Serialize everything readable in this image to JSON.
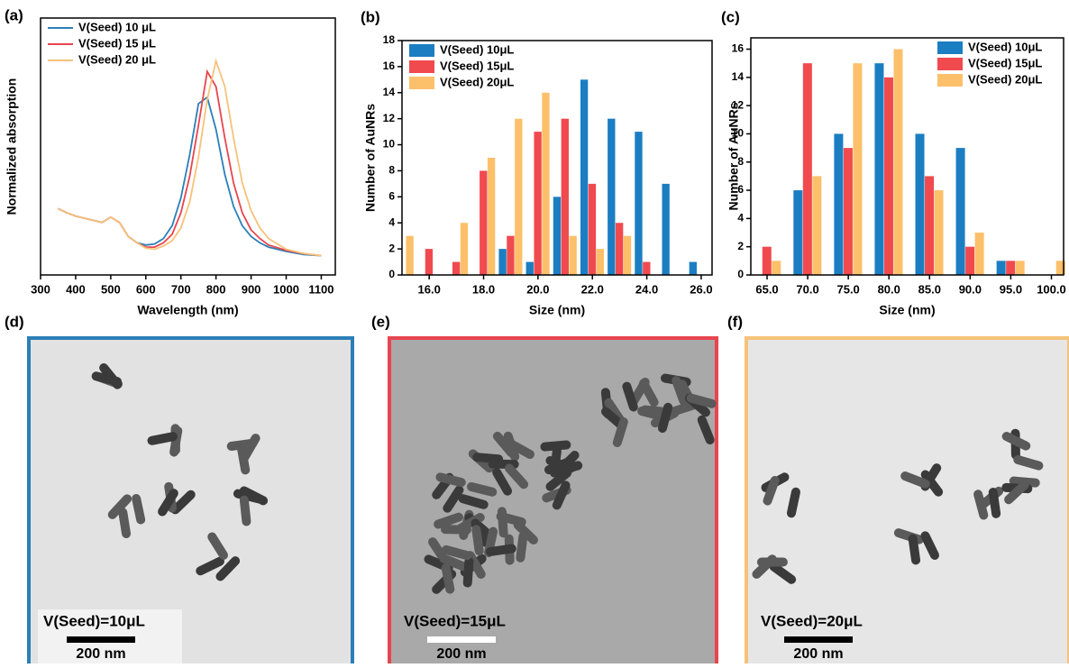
{
  "chart_data": [
    {
      "type": "line",
      "panel_label": "(a)",
      "xlabel": "Wavelength (nm)",
      "ylabel": "Normalized absorption",
      "x": [
        350,
        375,
        400,
        425,
        450,
        475,
        500,
        525,
        550,
        575,
        600,
        625,
        650,
        675,
        700,
        725,
        750,
        775,
        800,
        825,
        850,
        875,
        900,
        925,
        950,
        1000,
        1050,
        1100
      ],
      "series": [
        {
          "name": "V(Seed) 10 μL",
          "color": "#2b7fb8",
          "values": [
            0.31,
            0.29,
            0.275,
            0.265,
            0.255,
            0.245,
            0.27,
            0.245,
            0.18,
            0.15,
            0.14,
            0.145,
            0.17,
            0.23,
            0.36,
            0.56,
            0.8,
            0.83,
            0.68,
            0.47,
            0.32,
            0.23,
            0.18,
            0.15,
            0.13,
            0.11,
            0.095,
            0.09
          ]
        },
        {
          "name": "V(Seed) 15 μL",
          "color": "#e8454f",
          "values": [
            0.31,
            0.29,
            0.275,
            0.265,
            0.255,
            0.245,
            0.27,
            0.245,
            0.18,
            0.15,
            0.13,
            0.13,
            0.15,
            0.19,
            0.29,
            0.46,
            0.7,
            0.95,
            0.88,
            0.64,
            0.43,
            0.29,
            0.21,
            0.17,
            0.14,
            0.115,
            0.1,
            0.09
          ]
        },
        {
          "name": "V(Seed) 20 μL",
          "color": "#f6c27a",
          "values": [
            0.31,
            0.29,
            0.275,
            0.265,
            0.255,
            0.245,
            0.27,
            0.245,
            0.18,
            0.15,
            0.125,
            0.12,
            0.135,
            0.16,
            0.22,
            0.34,
            0.55,
            0.82,
            1.0,
            0.88,
            0.64,
            0.43,
            0.3,
            0.22,
            0.17,
            0.12,
            0.1,
            0.09
          ]
        }
      ],
      "xlim": [
        300,
        1140
      ],
      "xticks": [
        300,
        400,
        500,
        600,
        700,
        800,
        900,
        1000,
        1100
      ],
      "ylim": [
        0,
        1.2
      ],
      "legend": "upper left"
    },
    {
      "type": "bar",
      "panel_label": "(b)",
      "xlabel": "Size (nm)",
      "ylabel": "Number of AuNRs",
      "x": [
        15,
        16,
        17,
        18,
        19,
        20,
        21,
        22,
        23,
        24,
        25,
        26
      ],
      "series": [
        {
          "name": "V(Seed) 10μL",
          "color": "#1b7ec2",
          "values": [
            0,
            0,
            0,
            0,
            2,
            1,
            6,
            15,
            12,
            11,
            7,
            1
          ]
        },
        {
          "name": "V(Seed) 15μL",
          "color": "#f04a4f",
          "values": [
            0,
            2,
            1,
            8,
            3,
            11,
            12,
            7,
            4,
            1,
            0,
            0
          ]
        },
        {
          "name": "V(Seed) 20μL",
          "color": "#fcc06b",
          "values": [
            3,
            0,
            4,
            9,
            12,
            14,
            3,
            2,
            3,
            0,
            0,
            0
          ]
        }
      ],
      "xlim": [
        15,
        26.4
      ],
      "xticks": [
        {
          "value": 16,
          "label": "16.0"
        },
        {
          "value": 18,
          "label": "18.0"
        },
        {
          "value": 20,
          "label": "20.0"
        },
        {
          "value": 22,
          "label": "22.0"
        },
        {
          "value": 24,
          "label": "24.0"
        },
        {
          "value": 26,
          "label": "26.0"
        }
      ],
      "ylim": [
        0,
        18
      ],
      "yticks": [
        0,
        2,
        4,
        6,
        8,
        10,
        12,
        14,
        16,
        18
      ],
      "legend": "upper left"
    },
    {
      "type": "bar",
      "panel_label": "(c)",
      "xlabel": "Size (nm)",
      "ylabel": "Number of AuNRs",
      "x": [
        65,
        70,
        75,
        80,
        85,
        90,
        95,
        100
      ],
      "series": [
        {
          "name": "V(Seed) 10μL",
          "color": "#1b7ec2",
          "values": [
            0,
            6,
            10,
            15,
            10,
            9,
            1,
            0
          ]
        },
        {
          "name": "V(Seed) 15μL",
          "color": "#f04a4f",
          "values": [
            2,
            15,
            9,
            14,
            7,
            2,
            1,
            0
          ]
        },
        {
          "name": "V(Seed) 20μL",
          "color": "#fcc06b",
          "values": [
            1,
            7,
            15,
            16,
            6,
            3,
            1,
            1
          ]
        }
      ],
      "xlim": [
        63,
        101.5
      ],
      "xticks": [
        {
          "value": 65,
          "label": "65.0"
        },
        {
          "value": 70,
          "label": "70.0"
        },
        {
          "value": 75,
          "label": "75.0"
        },
        {
          "value": 80,
          "label": "80.0"
        },
        {
          "value": 85,
          "label": "85.0"
        },
        {
          "value": 90,
          "label": "90.0"
        },
        {
          "value": 95,
          "label": "95.0"
        },
        {
          "value": 100,
          "label": "100.0"
        }
      ],
      "ylim": [
        0,
        16.8
      ],
      "yticks": [
        0,
        2,
        4,
        6,
        8,
        10,
        12,
        14,
        16
      ],
      "legend": "upper right"
    }
  ],
  "panels": [
    {
      "label": "(d)",
      "caption": "V(Seed)=10μL",
      "scale": "200 nm",
      "border": "#2b7fb8"
    },
    {
      "label": "(e)",
      "caption": "V(Seed)=15μL",
      "scale": "200 nm",
      "border": "#e8454f"
    },
    {
      "label": "(f)",
      "caption": "V(Seed)=20μL",
      "scale": "200 nm",
      "border": "#f6c27a"
    }
  ]
}
